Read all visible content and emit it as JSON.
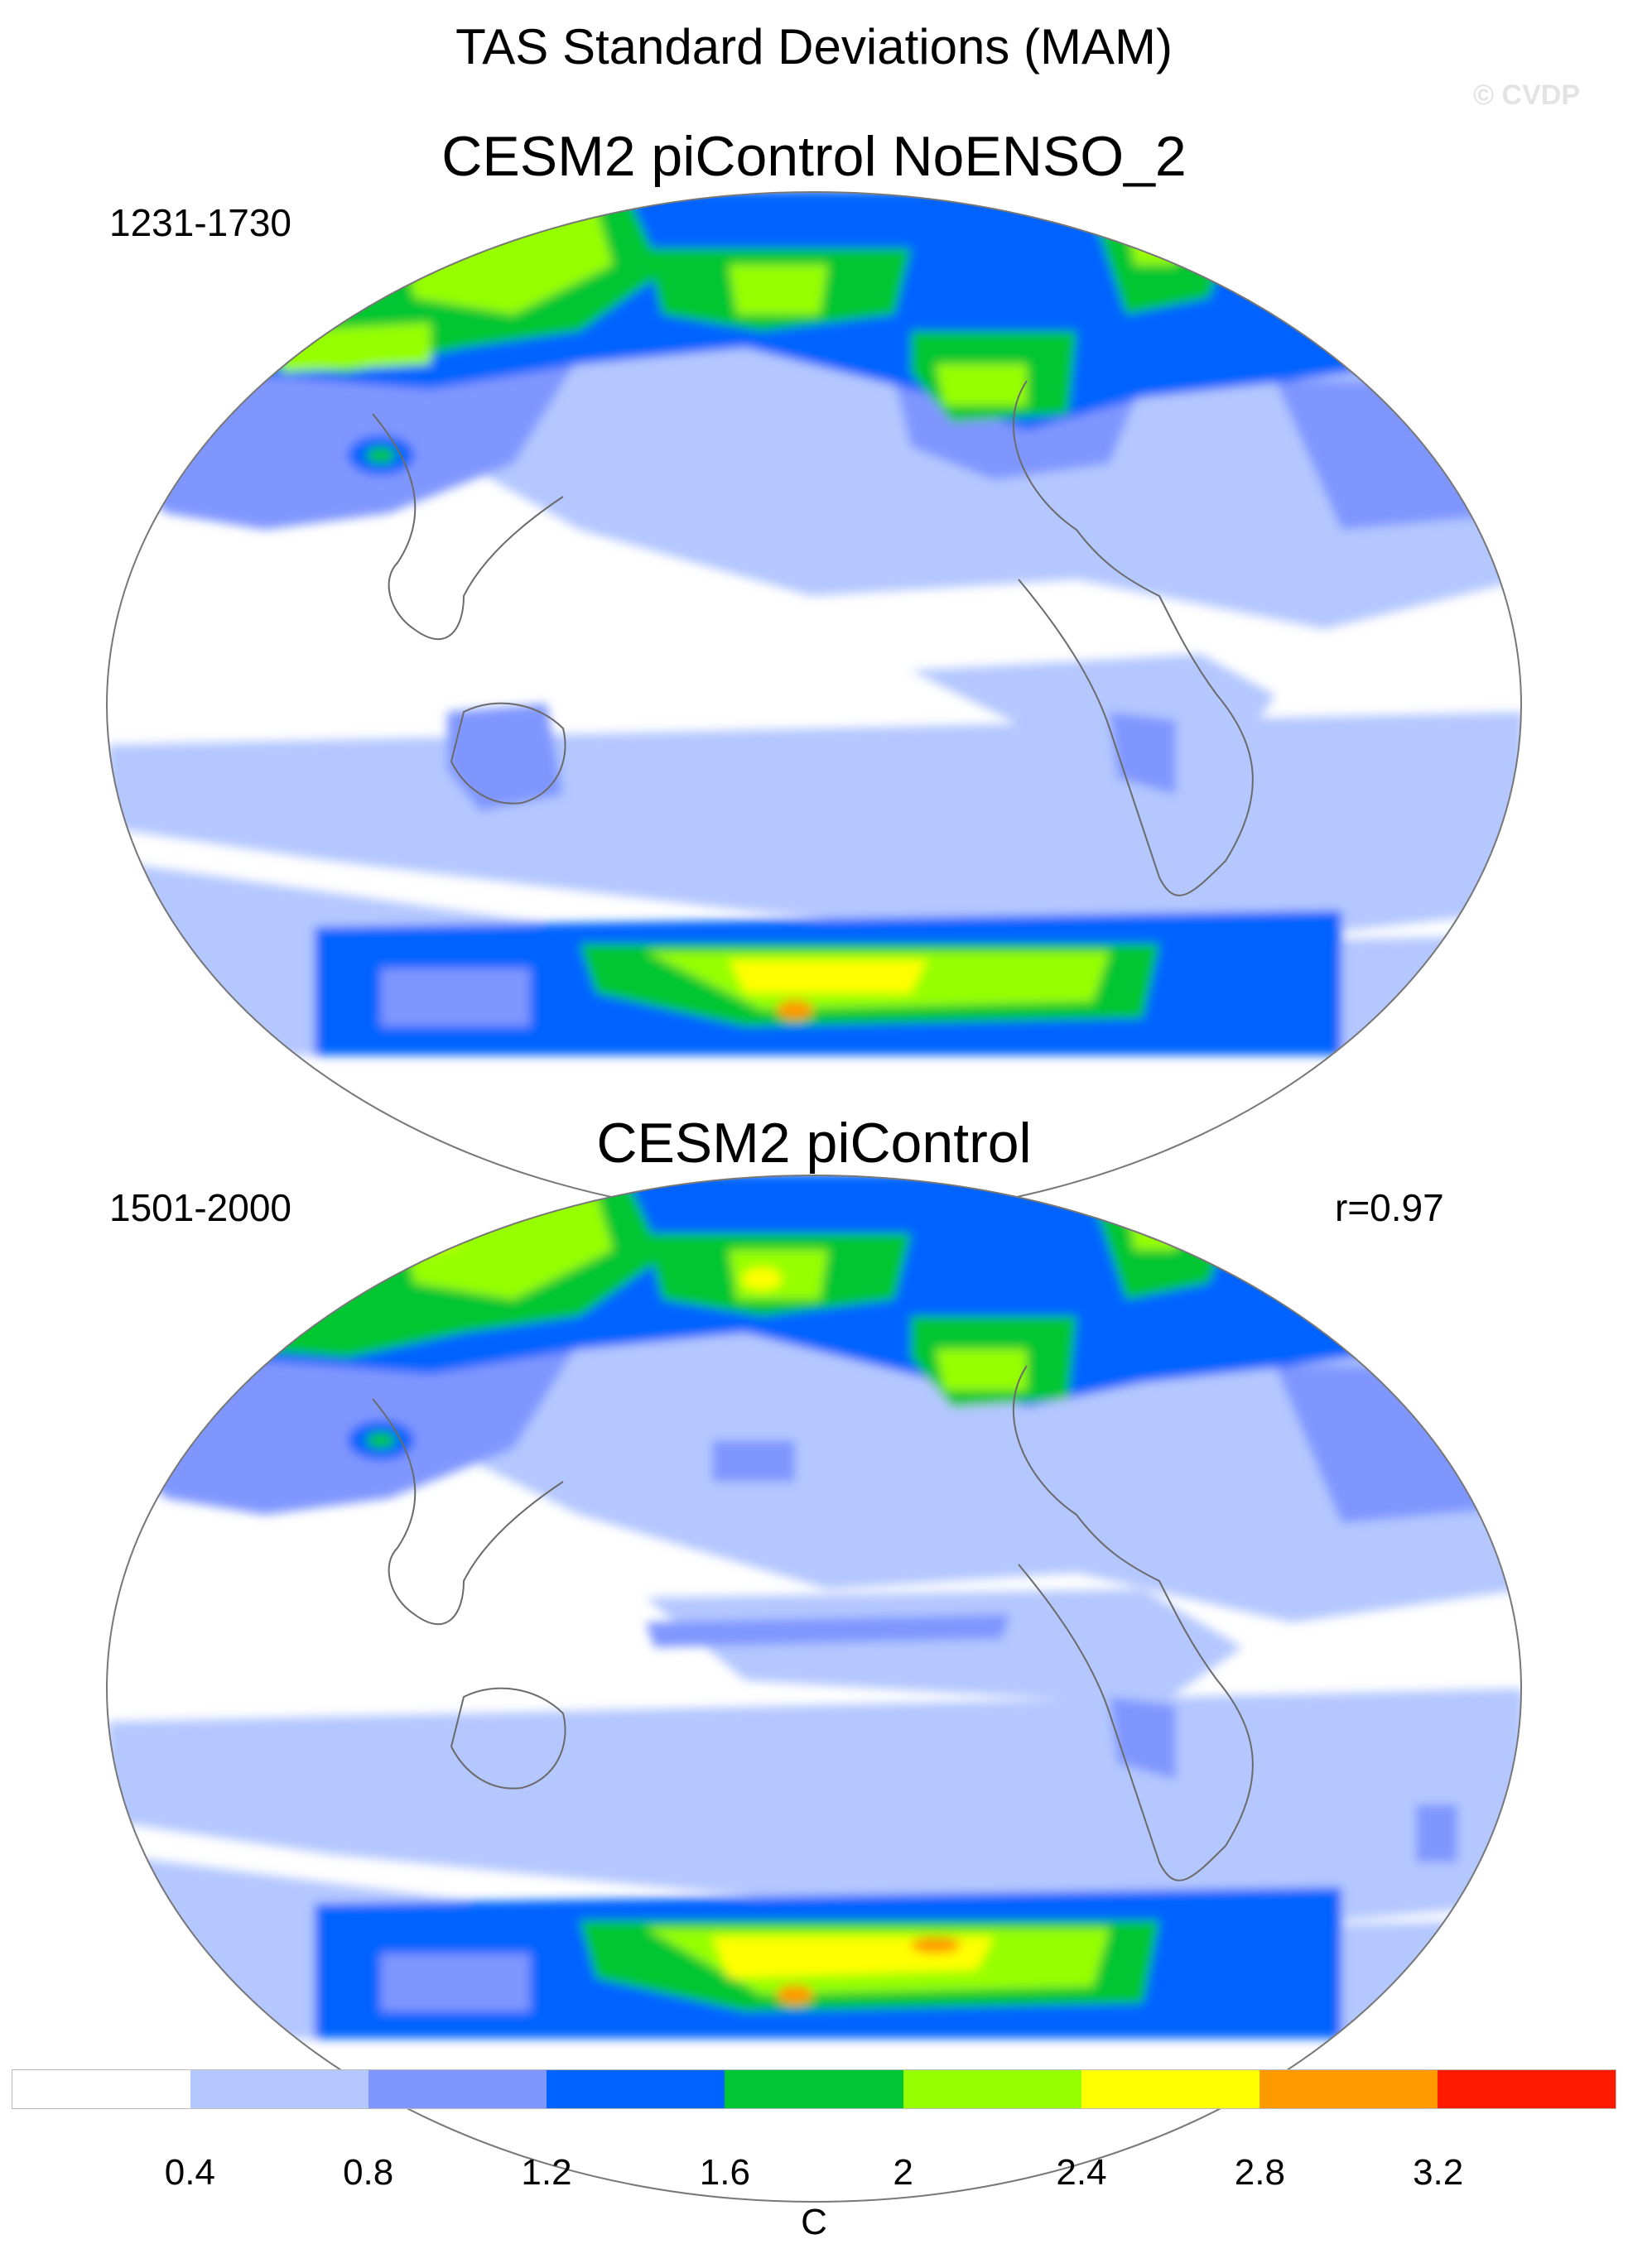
{
  "title": "TAS Standard Deviations (MAM)",
  "watermark": "© CVDP",
  "panels": [
    {
      "title": "CESM2 piControl NoENSO_2",
      "period": "1231-1730",
      "correlation": ""
    },
    {
      "title": "CESM2 piControl",
      "period": "1501-2000",
      "correlation": "r=0.97"
    }
  ],
  "colorbar": {
    "colors": [
      "#ffffff",
      "#b4c7ff",
      "#7f96ff",
      "#0063ff",
      "#00c633",
      "#96ff00",
      "#ffff00",
      "#ff9900",
      "#ff1900"
    ],
    "ticks": [
      "0.4",
      "0.8",
      "1.2",
      "1.6",
      "2",
      "2.4",
      "2.8",
      "3.2"
    ],
    "units": "C"
  }
}
